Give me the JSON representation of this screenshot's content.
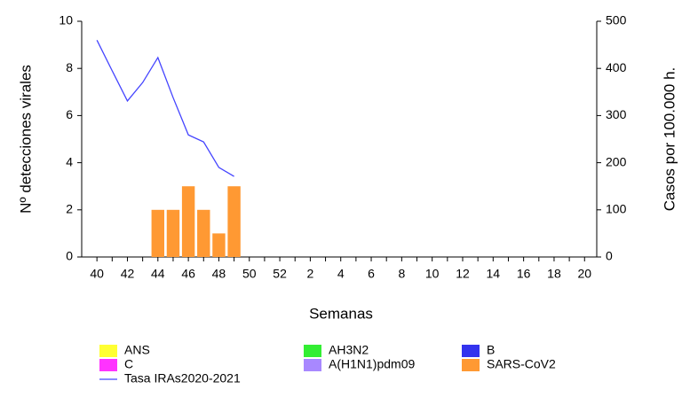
{
  "chart_data": {
    "type": "bar",
    "xlabel": "Semanas",
    "ylabel": "Nº detecciones virales",
    "y2label": "Casos por 100.000 h.",
    "categories": [
      "40",
      null,
      "42",
      null,
      "44",
      null,
      "46",
      null,
      "48",
      null,
      "50",
      null,
      "52",
      null,
      "2",
      null,
      "4",
      null,
      "6",
      null,
      "8",
      null,
      "10",
      null,
      "12",
      null,
      "14",
      null,
      "16",
      null,
      "18",
      null,
      "20"
    ],
    "ylim": [
      0,
      10
    ],
    "yticks": [
      0,
      2,
      4,
      6,
      8,
      10
    ],
    "y2lim": [
      0,
      500
    ],
    "y2ticks": [
      0,
      100,
      200,
      300,
      400,
      500
    ],
    "grid": false,
    "series": [
      {
        "name": "ANS",
        "color": "#ffff33",
        "values": [
          null,
          null,
          null,
          null,
          null,
          null,
          null,
          null,
          null,
          null,
          null,
          null,
          null,
          null,
          null,
          null,
          null,
          null,
          null,
          null,
          null,
          null,
          null,
          null,
          null,
          null,
          null,
          null,
          null,
          null,
          null,
          null,
          null
        ]
      },
      {
        "name": "AH3N2",
        "color": "#33ee33",
        "values": [
          null,
          null,
          null,
          null,
          null,
          null,
          null,
          null,
          null,
          null,
          null,
          null,
          null,
          null,
          null,
          null,
          null,
          null,
          null,
          null,
          null,
          null,
          null,
          null,
          null,
          null,
          null,
          null,
          null,
          null,
          null,
          null,
          null
        ]
      },
      {
        "name": "B",
        "color": "#3333ee",
        "values": [
          null,
          null,
          null,
          null,
          null,
          null,
          null,
          null,
          null,
          null,
          null,
          null,
          null,
          null,
          null,
          null,
          null,
          null,
          null,
          null,
          null,
          null,
          null,
          null,
          null,
          null,
          null,
          null,
          null,
          null,
          null,
          null,
          null
        ]
      },
      {
        "name": "C",
        "color": "#ff33ff",
        "values": [
          null,
          null,
          null,
          null,
          null,
          null,
          null,
          null,
          null,
          null,
          null,
          null,
          null,
          null,
          null,
          null,
          null,
          null,
          null,
          null,
          null,
          null,
          null,
          null,
          null,
          null,
          null,
          null,
          null,
          null,
          null,
          null,
          null
        ]
      },
      {
        "name": "A(H1N1)pdm09",
        "color": "#a888ff",
        "values": [
          null,
          null,
          null,
          null,
          null,
          null,
          null,
          null,
          null,
          null,
          null,
          null,
          null,
          null,
          null,
          null,
          null,
          null,
          null,
          null,
          null,
          null,
          null,
          null,
          null,
          null,
          null,
          null,
          null,
          null,
          null,
          null,
          null
        ]
      },
      {
        "name": "SARS-CoV2",
        "color": "#ff9933",
        "values": [
          null,
          null,
          null,
          null,
          2,
          2,
          3,
          2,
          1,
          3,
          null,
          null,
          null,
          null,
          null,
          null,
          null,
          null,
          null,
          null,
          null,
          null,
          null,
          null,
          null,
          null,
          null,
          null,
          null,
          null,
          null,
          null,
          null
        ]
      },
      {
        "name": "Tasa IRAs2020-2021",
        "color": "#4444ff",
        "type": "line",
        "axis": "y2",
        "values": [
          460,
          395,
          331,
          370,
          423,
          338,
          259,
          244,
          190,
          171,
          null,
          null,
          null,
          null,
          null,
          null,
          null,
          null,
          null,
          null,
          null,
          null,
          null,
          null,
          null,
          null,
          null,
          null,
          null,
          null,
          null,
          null,
          null
        ]
      }
    ]
  }
}
